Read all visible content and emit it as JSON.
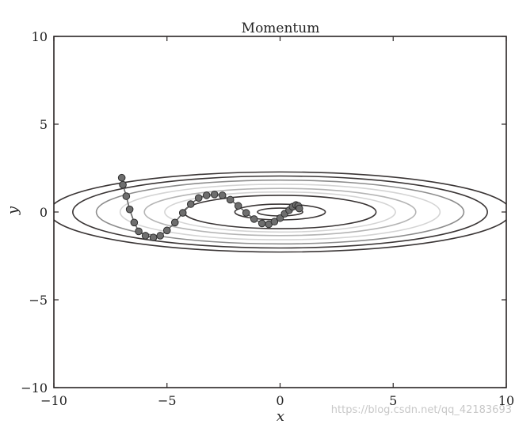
{
  "chart_data": {
    "type": "line",
    "title": "Momentum",
    "xlabel": "x",
    "ylabel": "y",
    "xlim": [
      -10,
      10
    ],
    "ylim": [
      -10,
      10
    ],
    "xticks": [
      -10,
      -5,
      0,
      5,
      10
    ],
    "yticks": [
      -10,
      -5,
      0,
      5,
      10
    ],
    "xtick_labels": [
      "−10",
      "−5",
      "0",
      "5",
      "10"
    ],
    "ytick_labels": [
      "−10",
      "−5",
      "0",
      "5",
      "10"
    ],
    "grid": false,
    "contours": {
      "function": "x^2/20 + y^2",
      "levels": [
        {
          "level": 0.05,
          "color": "#3a3535"
        },
        {
          "level": 0.2,
          "color": "#3a3535"
        },
        {
          "level": 0.9,
          "color": "#3a3535"
        },
        {
          "level": 1.3,
          "color": "#d4d4d4"
        },
        {
          "level": 1.8,
          "color": "#b5b5b5"
        },
        {
          "level": 2.5,
          "color": "#d4d4d4"
        },
        {
          "level": 3.3,
          "color": "#8c8c8c"
        },
        {
          "level": 4.2,
          "color": "#3a3535"
        },
        {
          "level": 5.2,
          "color": "#3a3535"
        }
      ]
    },
    "series": [
      {
        "color": "#666666",
        "x": [
          -7.0,
          -6.95,
          -6.8,
          -6.65,
          -6.45,
          -6.25,
          -5.95,
          -5.6,
          -5.3,
          -5.0,
          -4.65,
          -4.3,
          -3.95,
          -3.6,
          -3.25,
          -2.9,
          -2.55,
          -2.2,
          -1.85,
          -1.5,
          -1.15,
          -0.8,
          -0.5,
          -0.25,
          0.0,
          0.2,
          0.4,
          0.55,
          0.7,
          0.8,
          0.85
        ],
        "y": [
          1.95,
          1.55,
          0.9,
          0.15,
          -0.6,
          -1.1,
          -1.35,
          -1.45,
          -1.35,
          -1.05,
          -0.6,
          -0.05,
          0.45,
          0.8,
          0.95,
          1.0,
          0.95,
          0.7,
          0.35,
          -0.05,
          -0.4,
          -0.65,
          -0.7,
          -0.55,
          -0.35,
          -0.1,
          0.1,
          0.3,
          0.4,
          0.35,
          0.2
        ]
      }
    ]
  },
  "watermark": "https://blog.csdn.net/qq_42183693"
}
